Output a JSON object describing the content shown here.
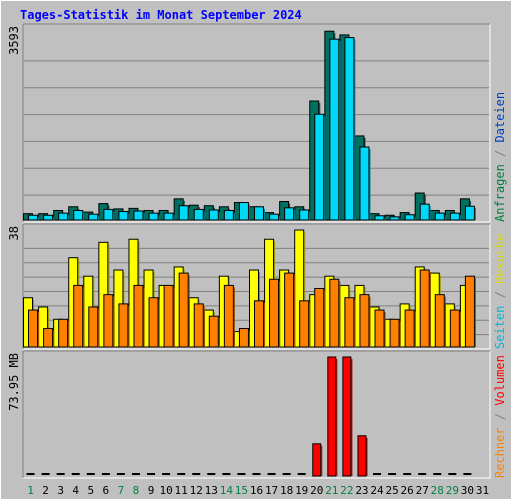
{
  "chart_data": [
    {
      "type": "bar",
      "title": "Tages-Statistik im Monat September 2024",
      "panel": "top",
      "ymax_label": "3593",
      "ylim": [
        0,
        3593
      ],
      "x": [
        1,
        2,
        3,
        4,
        5,
        6,
        7,
        8,
        9,
        10,
        11,
        12,
        13,
        14,
        15,
        16,
        17,
        18,
        19,
        20,
        21,
        22,
        23,
        24,
        25,
        26,
        27,
        28,
        29,
        30,
        31
      ],
      "right_labels": [
        {
          "text": "Anfragen",
          "color": "#008040"
        },
        {
          "text": "Dateien",
          "color": "#0040c0"
        }
      ],
      "series": [
        {
          "name": "Anfragen",
          "color": "#007060",
          "values": [
            120,
            120,
            180,
            250,
            150,
            310,
            210,
            220,
            180,
            180,
            400,
            280,
            270,
            250,
            330,
            250,
            140,
            350,
            250,
            2250,
            3570,
            3500,
            1590,
            120,
            90,
            140,
            510,
            180,
            180,
            400,
            0
          ]
        },
        {
          "name": "Dateien",
          "color": "#00d8f8",
          "values": [
            90,
            90,
            130,
            180,
            110,
            200,
            160,
            170,
            130,
            130,
            270,
            200,
            190,
            180,
            330,
            250,
            110,
            230,
            190,
            2000,
            3420,
            3450,
            1380,
            80,
            60,
            100,
            300,
            130,
            130,
            260,
            0
          ]
        }
      ]
    },
    {
      "type": "bar",
      "panel": "middle",
      "ymax_label": "38",
      "ylim": [
        0,
        38
      ],
      "x": [
        1,
        2,
        3,
        4,
        5,
        6,
        7,
        8,
        9,
        10,
        11,
        12,
        13,
        14,
        15,
        16,
        17,
        18,
        19,
        20,
        21,
        22,
        23,
        24,
        25,
        26,
        27,
        28,
        29,
        30,
        31
      ],
      "right_labels": [
        {
          "text": "Seiten",
          "color": "#00b8d8"
        },
        {
          "text": "Besuche",
          "color": "#d8d800"
        }
      ],
      "series": [
        {
          "name": "Seiten",
          "color": "#ffff00",
          "values": [
            16,
            13,
            9,
            29,
            23,
            34,
            25,
            35,
            25,
            20,
            26,
            16,
            12,
            23,
            5,
            25,
            35,
            25,
            38,
            17,
            23,
            20,
            20,
            13,
            9,
            14,
            26,
            24,
            14,
            20,
            0
          ]
        },
        {
          "name": "Besuche",
          "color": "#ff8000",
          "values": [
            12,
            6,
            9,
            20,
            13,
            17,
            14,
            20,
            16,
            20,
            24,
            14,
            10,
            20,
            6,
            15,
            22,
            24,
            15,
            19,
            22,
            16,
            17,
            12,
            9,
            12,
            25,
            17,
            12,
            23,
            0
          ]
        }
      ]
    },
    {
      "type": "bar",
      "panel": "bottom",
      "ymax_label": "73.95 MB",
      "ylim": [
        0,
        73.95
      ],
      "x": [
        1,
        2,
        3,
        4,
        5,
        6,
        7,
        8,
        9,
        10,
        11,
        12,
        13,
        14,
        15,
        16,
        17,
        18,
        19,
        20,
        21,
        22,
        23,
        24,
        25,
        26,
        27,
        28,
        29,
        30,
        31
      ],
      "right_labels": [
        {
          "text": "Rechner",
          "color": "#ff8000"
        },
        {
          "text": "Volumen",
          "color": "#ff0000"
        }
      ],
      "series": [
        {
          "name": "Volumen",
          "color": "#ff0000",
          "values": [
            1,
            1,
            1,
            1,
            1,
            1,
            1,
            1,
            1,
            1,
            1,
            1,
            1,
            1,
            1,
            1,
            1,
            1,
            1,
            20,
            73.95,
            73.95,
            25,
            1,
            1,
            1,
            1,
            1,
            1,
            1,
            0
          ]
        }
      ]
    }
  ],
  "day_labels": [
    "1",
    "2",
    "3",
    "4",
    "5",
    "6",
    "7",
    "8",
    "9",
    "10",
    "11",
    "12",
    "13",
    "14",
    "15",
    "16",
    "17",
    "18",
    "19",
    "20",
    "21",
    "22",
    "23",
    "24",
    "25",
    "26",
    "27",
    "28",
    "29",
    "30",
    "31"
  ],
  "weekend_days": [
    1,
    7,
    8,
    14,
    15,
    21,
    22,
    28,
    29
  ],
  "colors": {
    "background": "#c0c0c0",
    "title": "#0000ff",
    "weekday_label": "#000000",
    "weekend_label": "#008040",
    "separator": "#808080"
  }
}
